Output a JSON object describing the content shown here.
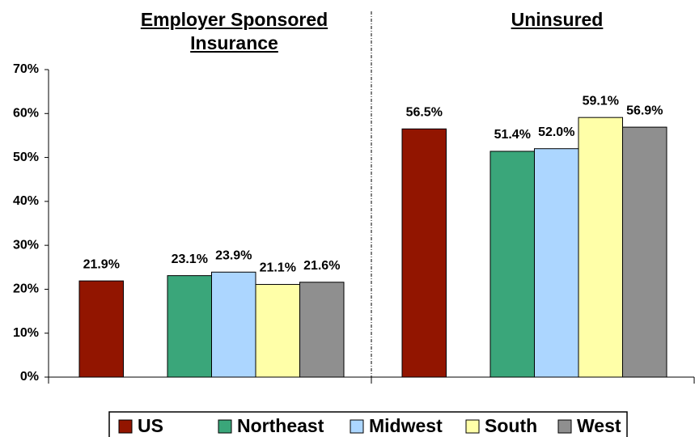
{
  "chart_data": {
    "type": "bar",
    "categories": [
      "Employer Sponsored Insurance",
      "Uninsured"
    ],
    "series": [
      {
        "name": "US",
        "color": "#921500",
        "values": [
          21.9,
          56.5
        ],
        "value_labels": [
          "21.9%",
          "56.5%"
        ]
      },
      {
        "name": "Northeast",
        "color": "#3aa67a",
        "values": [
          23.1,
          51.4
        ],
        "value_labels": [
          "23.1%",
          "51.4%"
        ]
      },
      {
        "name": "Midwest",
        "color": "#acd6ff",
        "values": [
          23.9,
          52.0
        ],
        "value_labels": [
          "23.9%",
          "52.0%"
        ]
      },
      {
        "name": "South",
        "color": "#ffffa8",
        "values": [
          21.1,
          59.1
        ],
        "value_labels": [
          "21.1%",
          "59.1%"
        ]
      },
      {
        "name": "West",
        "color": "#8f8f8f",
        "values": [
          21.6,
          56.9
        ],
        "value_labels": [
          "21.6%",
          "56.9%"
        ]
      }
    ],
    "ylim": [
      0,
      70
    ],
    "yticks": [
      {
        "value": 0,
        "label": "0%"
      },
      {
        "value": 10,
        "label": "10%"
      },
      {
        "value": 20,
        "label": "20%"
      },
      {
        "value": 30,
        "label": "30%"
      },
      {
        "value": 40,
        "label": "40%"
      },
      {
        "value": 50,
        "label": "50%"
      },
      {
        "value": 60,
        "label": "60%"
      },
      {
        "value": 70,
        "label": "70%"
      }
    ],
    "legend": "bottom"
  }
}
